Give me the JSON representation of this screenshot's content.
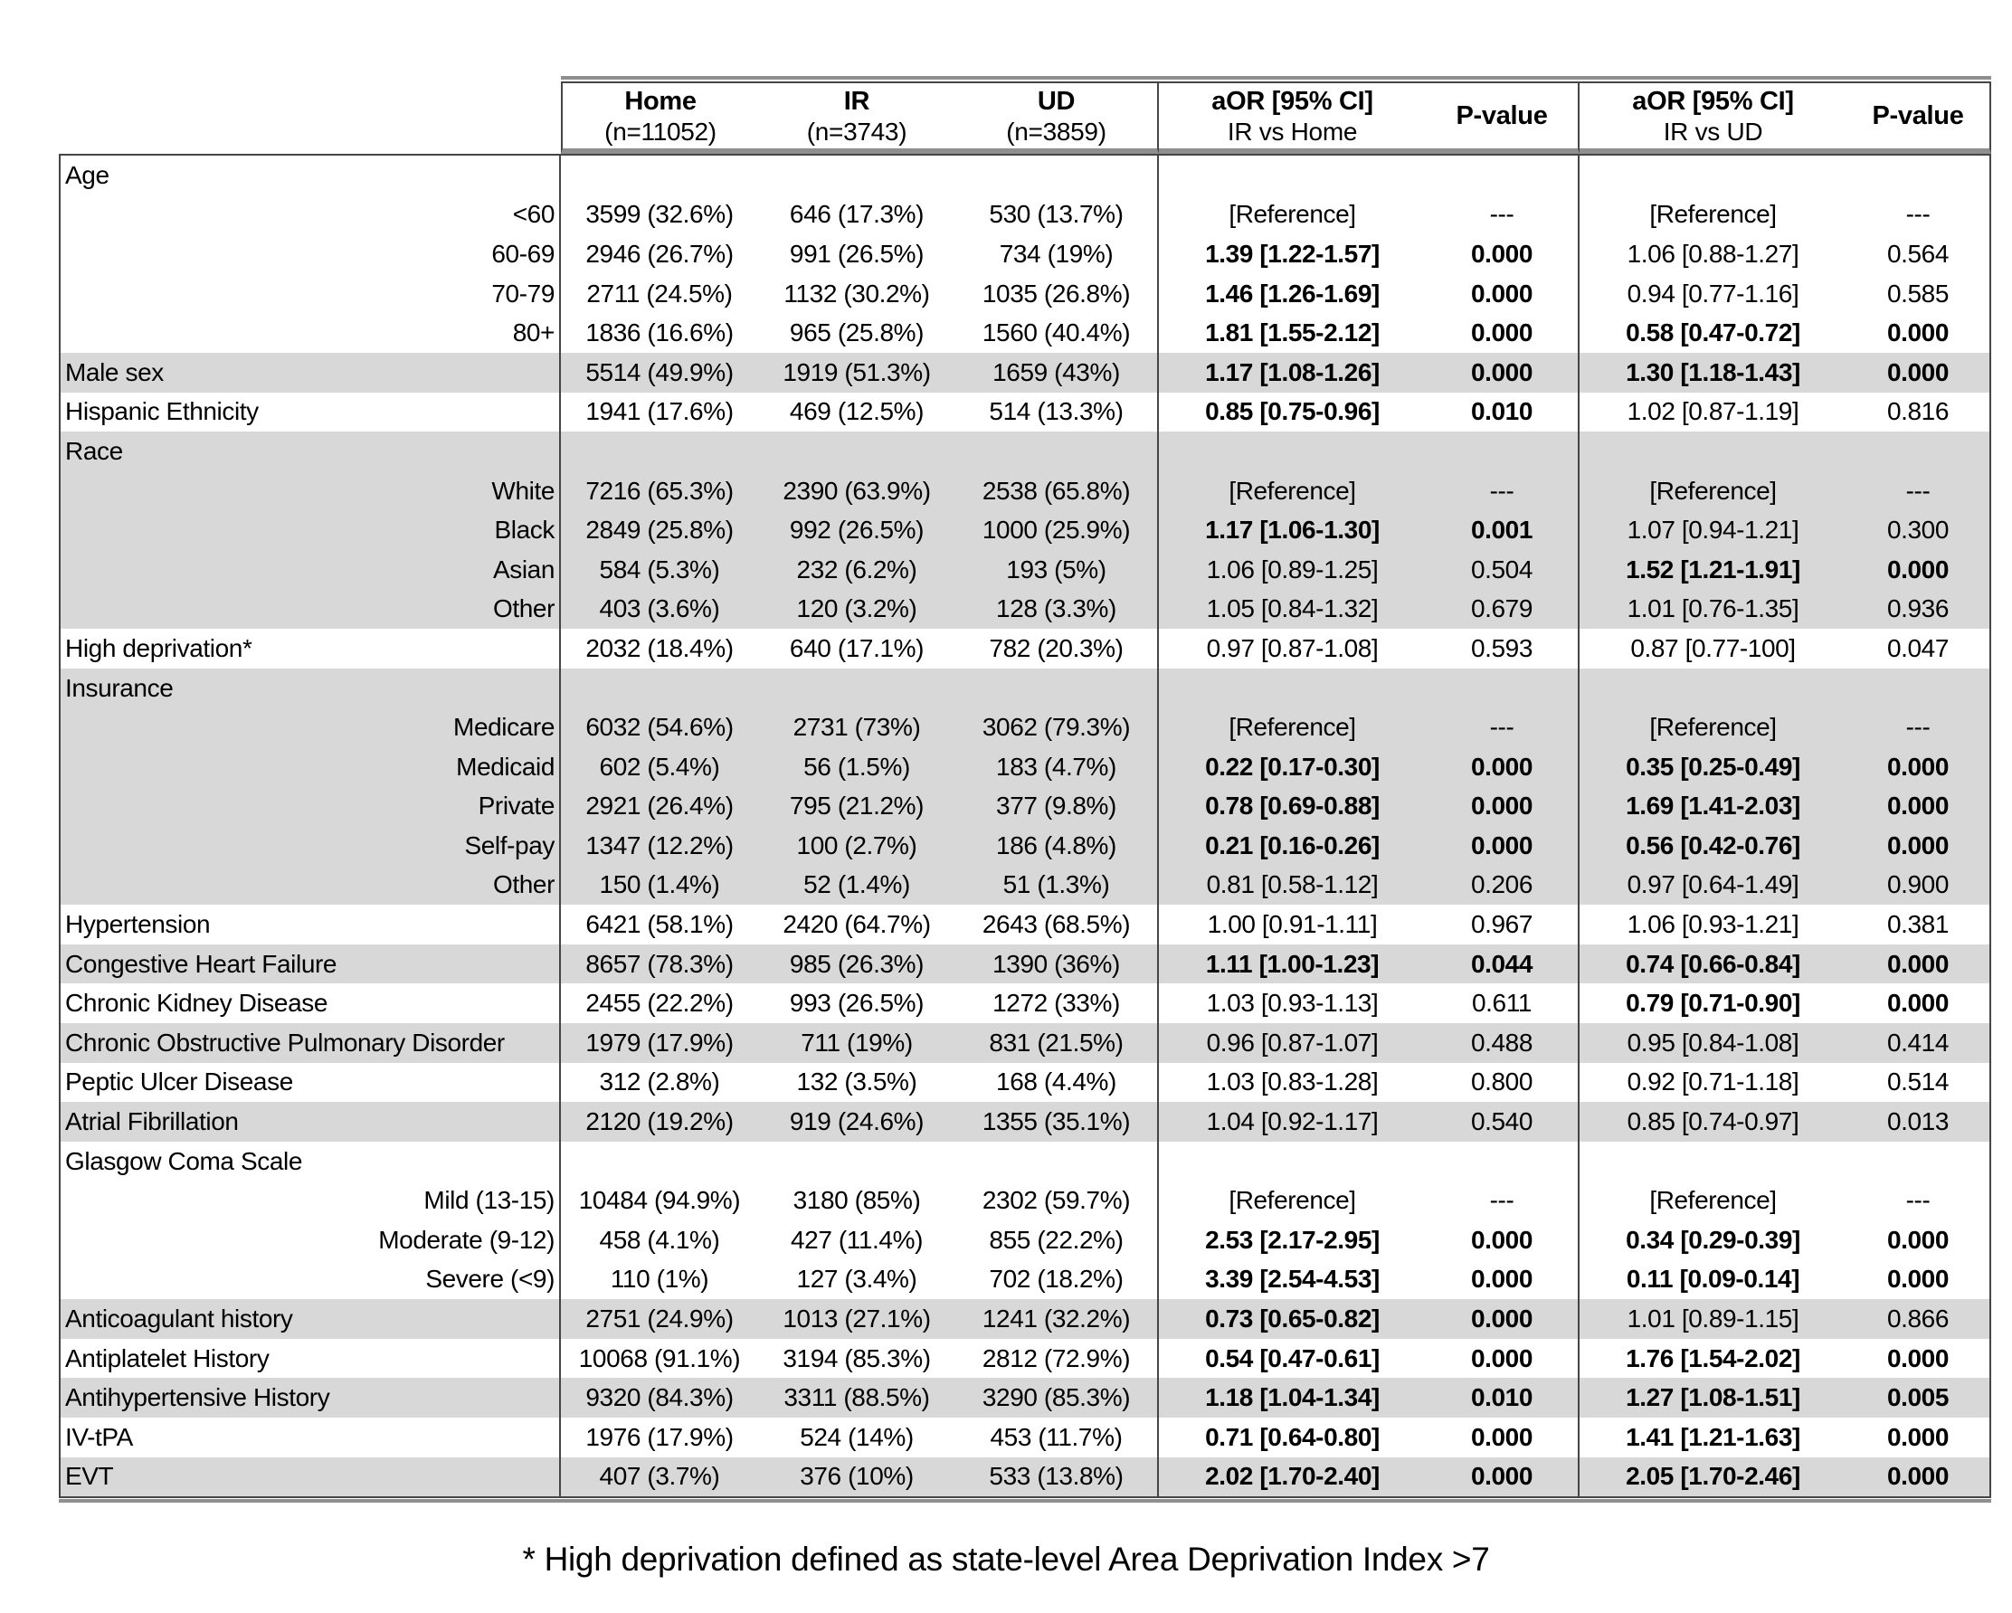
{
  "colors": {
    "shaded_row": "#d8d8d8",
    "border_dark": "#454545",
    "border_band": "#8f8f8f",
    "text": "#000000"
  },
  "footnote": "* High deprivation defined as state-level Area Deprivation Index >7",
  "table": {
    "header": {
      "columns": [
        {
          "label": "Home",
          "sub": "(n=11052)"
        },
        {
          "label": "IR",
          "sub": "(n=3743)"
        },
        {
          "label": "UD",
          "sub": "(n=3859)"
        },
        {
          "label": "aOR [95% CI]",
          "sub": "IR vs Home"
        },
        {
          "label": "P-value",
          "sub": ""
        },
        {
          "label": "aOR [95% CI]",
          "sub": "IR vs UD"
        },
        {
          "label": "P-value",
          "sub": ""
        }
      ]
    },
    "rows": [
      {
        "label": "Age",
        "type": "group",
        "shaded": false
      },
      {
        "label": "<60",
        "type": "sub",
        "shaded": false,
        "cells": [
          "3599 (32.6%)",
          "646 (17.3%)",
          "530 (13.7%)",
          "[Reference]",
          "---",
          "[Reference]",
          "---"
        ],
        "bold": [
          false,
          false,
          false,
          false
        ]
      },
      {
        "label": "60-69",
        "type": "sub",
        "shaded": false,
        "cells": [
          "2946 (26.7%)",
          "991 (26.5%)",
          "734 (19%)",
          "1.39 [1.22-1.57]",
          "0.000",
          "1.06 [0.88-1.27]",
          "0.564"
        ],
        "bold": [
          true,
          true,
          false,
          false
        ]
      },
      {
        "label": "70-79",
        "type": "sub",
        "shaded": false,
        "cells": [
          "2711 (24.5%)",
          "1132 (30.2%)",
          "1035 (26.8%)",
          "1.46 [1.26-1.69]",
          "0.000",
          "0.94 [0.77-1.16]",
          "0.585"
        ],
        "bold": [
          true,
          true,
          false,
          false
        ]
      },
      {
        "label": "80+",
        "type": "sub",
        "shaded": false,
        "cells": [
          "1836 (16.6%)",
          "965 (25.8%)",
          "1560 (40.4%)",
          "1.81 [1.55-2.12]",
          "0.000",
          "0.58 [0.47-0.72]",
          "0.000"
        ],
        "bold": [
          true,
          true,
          true,
          true
        ]
      },
      {
        "label": "Male sex",
        "type": "plain",
        "shaded": true,
        "cells": [
          "5514 (49.9%)",
          "1919 (51.3%)",
          "1659 (43%)",
          "1.17 [1.08-1.26]",
          "0.000",
          "1.30 [1.18-1.43]",
          "0.000"
        ],
        "bold": [
          true,
          true,
          true,
          true
        ]
      },
      {
        "label": "Hispanic Ethnicity",
        "type": "plain",
        "shaded": false,
        "cells": [
          "1941 (17.6%)",
          "469 (12.5%)",
          "514 (13.3%)",
          "0.85 [0.75-0.96]",
          "0.010",
          "1.02 [0.87-1.19]",
          "0.816"
        ],
        "bold": [
          true,
          true,
          false,
          false
        ]
      },
      {
        "label": "Race",
        "type": "group",
        "shaded": true
      },
      {
        "label": "White",
        "type": "sub",
        "shaded": true,
        "cells": [
          "7216 (65.3%)",
          "2390 (63.9%)",
          "2538 (65.8%)",
          "[Reference]",
          "---",
          "[Reference]",
          "---"
        ],
        "bold": [
          false,
          false,
          false,
          false
        ]
      },
      {
        "label": "Black",
        "type": "sub",
        "shaded": true,
        "cells": [
          "2849 (25.8%)",
          "992 (26.5%)",
          "1000 (25.9%)",
          "1.17 [1.06-1.30]",
          "0.001",
          "1.07 [0.94-1.21]",
          "0.300"
        ],
        "bold": [
          true,
          true,
          false,
          false
        ]
      },
      {
        "label": "Asian",
        "type": "sub",
        "shaded": true,
        "cells": [
          "584 (5.3%)",
          "232 (6.2%)",
          "193 (5%)",
          "1.06 [0.89-1.25]",
          "0.504",
          "1.52 [1.21-1.91]",
          "0.000"
        ],
        "bold": [
          false,
          false,
          true,
          true
        ]
      },
      {
        "label": "Other",
        "type": "sub",
        "shaded": true,
        "cells": [
          "403 (3.6%)",
          "120 (3.2%)",
          "128 (3.3%)",
          "1.05 [0.84-1.32]",
          "0.679",
          "1.01 [0.76-1.35]",
          "0.936"
        ],
        "bold": [
          false,
          false,
          false,
          false
        ]
      },
      {
        "label": "High deprivation*",
        "type": "plain",
        "shaded": false,
        "cells": [
          "2032 (18.4%)",
          "640 (17.1%)",
          "782 (20.3%)",
          "0.97 [0.87-1.08]",
          "0.593",
          "0.87 [0.77-100]",
          "0.047"
        ],
        "bold": [
          false,
          false,
          false,
          false
        ]
      },
      {
        "label": "Insurance",
        "type": "group",
        "shaded": true
      },
      {
        "label": "Medicare",
        "type": "sub",
        "shaded": true,
        "cells": [
          "6032 (54.6%)",
          "2731 (73%)",
          "3062 (79.3%)",
          "[Reference]",
          "---",
          "[Reference]",
          "---"
        ],
        "bold": [
          false,
          false,
          false,
          false
        ]
      },
      {
        "label": "Medicaid",
        "type": "sub",
        "shaded": true,
        "cells": [
          "602 (5.4%)",
          "56 (1.5%)",
          "183 (4.7%)",
          "0.22 [0.17-0.30]",
          "0.000",
          "0.35 [0.25-0.49]",
          "0.000"
        ],
        "bold": [
          true,
          true,
          true,
          true
        ]
      },
      {
        "label": "Private",
        "type": "sub",
        "shaded": true,
        "cells": [
          "2921 (26.4%)",
          "795 (21.2%)",
          "377 (9.8%)",
          "0.78 [0.69-0.88]",
          "0.000",
          "1.69 [1.41-2.03]",
          "0.000"
        ],
        "bold": [
          true,
          true,
          true,
          true
        ]
      },
      {
        "label": "Self-pay",
        "type": "sub",
        "shaded": true,
        "cells": [
          "1347 (12.2%)",
          "100 (2.7%)",
          "186 (4.8%)",
          "0.21 [0.16-0.26]",
          "0.000",
          "0.56 [0.42-0.76]",
          "0.000"
        ],
        "bold": [
          true,
          true,
          true,
          true
        ]
      },
      {
        "label": "Other",
        "type": "sub",
        "shaded": true,
        "cells": [
          "150 (1.4%)",
          "52 (1.4%)",
          "51 (1.3%)",
          "0.81 [0.58-1.12]",
          "0.206",
          "0.97 [0.64-1.49]",
          "0.900"
        ],
        "bold": [
          false,
          false,
          false,
          false
        ]
      },
      {
        "label": "Hypertension",
        "type": "plain",
        "shaded": false,
        "cells": [
          "6421 (58.1%)",
          "2420 (64.7%)",
          "2643 (68.5%)",
          "1.00 [0.91-1.11]",
          "0.967",
          "1.06 [0.93-1.21]",
          "0.381"
        ],
        "bold": [
          false,
          false,
          false,
          false
        ]
      },
      {
        "label": "Congestive Heart Failure",
        "type": "plain",
        "shaded": true,
        "cells": [
          "8657 (78.3%)",
          "985 (26.3%)",
          "1390 (36%)",
          "1.11 [1.00-1.23]",
          "0.044",
          "0.74 [0.66-0.84]",
          "0.000"
        ],
        "bold": [
          true,
          true,
          true,
          true
        ]
      },
      {
        "label": "Chronic Kidney Disease",
        "type": "plain",
        "shaded": false,
        "cells": [
          "2455 (22.2%)",
          "993 (26.5%)",
          "1272 (33%)",
          "1.03 [0.93-1.13]",
          "0.611",
          "0.79 [0.71-0.90]",
          "0.000"
        ],
        "bold": [
          false,
          false,
          true,
          true
        ]
      },
      {
        "label": "Chronic Obstructive Pulmonary Disorder",
        "type": "plain",
        "shaded": true,
        "cells": [
          "1979 (17.9%)",
          "711 (19%)",
          "831 (21.5%)",
          "0.96 [0.87-1.07]",
          "0.488",
          "0.95 [0.84-1.08]",
          "0.414"
        ],
        "bold": [
          false,
          false,
          false,
          false
        ]
      },
      {
        "label": "Peptic Ulcer Disease",
        "type": "plain",
        "shaded": false,
        "cells": [
          "312 (2.8%)",
          "132 (3.5%)",
          "168 (4.4%)",
          "1.03 [0.83-1.28]",
          "0.800",
          "0.92 [0.71-1.18]",
          "0.514"
        ],
        "bold": [
          false,
          false,
          false,
          false
        ]
      },
      {
        "label": "Atrial Fibrillation",
        "type": "plain",
        "shaded": true,
        "cells": [
          "2120 (19.2%)",
          "919 (24.6%)",
          "1355 (35.1%)",
          "1.04 [0.92-1.17]",
          "0.540",
          "0.85 [0.74-0.97]",
          "0.013"
        ],
        "bold": [
          false,
          false,
          false,
          false
        ]
      },
      {
        "label": "Glasgow Coma Scale",
        "type": "group",
        "shaded": false
      },
      {
        "label": "Mild (13-15)",
        "type": "sub",
        "shaded": false,
        "cells": [
          "10484 (94.9%)",
          "3180 (85%)",
          "2302 (59.7%)",
          "[Reference]",
          "---",
          "[Reference]",
          "---"
        ],
        "bold": [
          false,
          false,
          false,
          false
        ]
      },
      {
        "label": "Moderate (9-12)",
        "type": "sub",
        "shaded": false,
        "cells": [
          "458 (4.1%)",
          "427 (11.4%)",
          "855 (22.2%)",
          "2.53 [2.17-2.95]",
          "0.000",
          "0.34 [0.29-0.39]",
          "0.000"
        ],
        "bold": [
          true,
          true,
          true,
          true
        ]
      },
      {
        "label": "Severe (<9)",
        "type": "sub",
        "shaded": false,
        "cells": [
          "110 (1%)",
          "127 (3.4%)",
          "702 (18.2%)",
          "3.39 [2.54-4.53]",
          "0.000",
          "0.11 [0.09-0.14]",
          "0.000"
        ],
        "bold": [
          true,
          true,
          true,
          true
        ]
      },
      {
        "label": "Anticoagulant history",
        "type": "plain",
        "shaded": true,
        "cells": [
          "2751 (24.9%)",
          "1013 (27.1%)",
          "1241 (32.2%)",
          "0.73 [0.65-0.82]",
          "0.000",
          "1.01 [0.89-1.15]",
          "0.866"
        ],
        "bold": [
          true,
          true,
          false,
          false
        ]
      },
      {
        "label": "Antiplatelet History",
        "type": "plain",
        "shaded": false,
        "cells": [
          "10068 (91.1%)",
          "3194 (85.3%)",
          "2812 (72.9%)",
          "0.54 [0.47-0.61]",
          "0.000",
          "1.76 [1.54-2.02]",
          "0.000"
        ],
        "bold": [
          true,
          true,
          true,
          true
        ]
      },
      {
        "label": "Antihypertensive History",
        "type": "plain",
        "shaded": true,
        "cells": [
          "9320 (84.3%)",
          "3311 (88.5%)",
          "3290 (85.3%)",
          "1.18 [1.04-1.34]",
          "0.010",
          "1.27 [1.08-1.51]",
          "0.005"
        ],
        "bold": [
          true,
          true,
          true,
          true
        ]
      },
      {
        "label": "IV-tPA",
        "type": "plain",
        "shaded": false,
        "cells": [
          "1976 (17.9%)",
          "524 (14%)",
          "453 (11.7%)",
          "0.71 [0.64-0.80]",
          "0.000",
          "1.41 [1.21-1.63]",
          "0.000"
        ],
        "bold": [
          true,
          true,
          true,
          true
        ]
      },
      {
        "label": "EVT",
        "type": "plain",
        "shaded": true,
        "cells": [
          "407 (3.7%)",
          "376 (10%)",
          "533 (13.8%)",
          "2.02 [1.70-2.40]",
          "0.000",
          "2.05 [1.70-2.46]",
          "0.000"
        ],
        "bold": [
          true,
          true,
          true,
          true
        ]
      }
    ]
  }
}
